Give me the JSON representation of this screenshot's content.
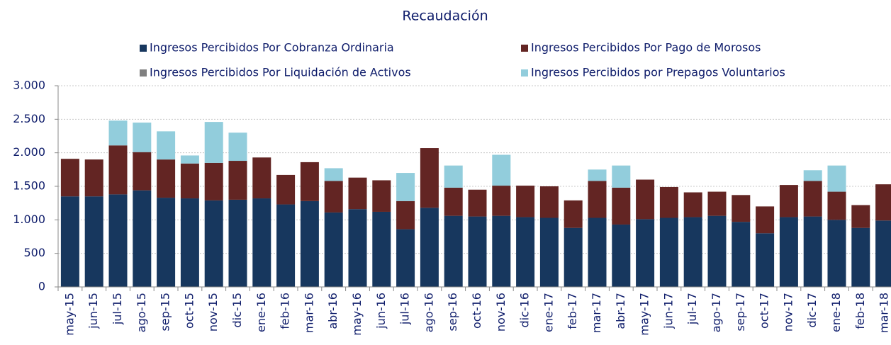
{
  "chart_data": {
    "type": "stacked_bar",
    "title": "Recaudación",
    "categories": [
      "may-15",
      "jun-15",
      "jul-15",
      "ago-15",
      "sep-15",
      "oct-15",
      "nov-15",
      "dic-15",
      "ene-16",
      "feb-16",
      "mar-16",
      "abr-16",
      "may-16",
      "jun-16",
      "jul-16",
      "ago-16",
      "sep-16",
      "oct-16",
      "nov-16",
      "dic-16",
      "ene-17",
      "feb-17",
      "mar-17",
      "abr-17",
      "may-17",
      "jun-17",
      "jul-17",
      "ago-17",
      "sep-17",
      "oct-17",
      "nov-17",
      "dic-17",
      "ene-18",
      "feb-18",
      "mar-18"
    ],
    "series": [
      {
        "name": "Ingresos Percibidos Por Cobranza Ordinaria",
        "color": "#17375e",
        "values": [
          1350,
          1350,
          1380,
          1440,
          1330,
          1320,
          1290,
          1300,
          1320,
          1230,
          1280,
          1110,
          1160,
          1120,
          860,
          1180,
          1060,
          1050,
          1060,
          1040,
          1030,
          880,
          1030,
          930,
          1010,
          1030,
          1040,
          1060,
          970,
          800,
          1040,
          1050,
          1000,
          880,
          990
        ]
      },
      {
        "name": "Ingresos Percibidos Por Pago de Morosos",
        "color": "#632523",
        "values": [
          560,
          550,
          730,
          570,
          570,
          520,
          560,
          580,
          610,
          440,
          580,
          470,
          470,
          470,
          420,
          890,
          420,
          400,
          450,
          470,
          470,
          410,
          550,
          550,
          590,
          460,
          370,
          360,
          400,
          400,
          480,
          530,
          420,
          340,
          540
        ]
      },
      {
        "name": "Ingresos Percibidos Por Liquidación de Activos",
        "color": "#808080",
        "values": [
          0,
          0,
          0,
          0,
          0,
          0,
          0,
          0,
          0,
          0,
          0,
          0,
          0,
          0,
          0,
          0,
          0,
          0,
          0,
          0,
          0,
          0,
          0,
          0,
          0,
          0,
          0,
          0,
          0,
          0,
          0,
          0,
          0,
          0,
          0
        ]
      },
      {
        "name": "Ingresos Percibidos por Prepagos Voluntarios",
        "color": "#92cddc",
        "values": [
          0,
          0,
          370,
          440,
          420,
          120,
          610,
          420,
          0,
          0,
          0,
          190,
          0,
          0,
          420,
          0,
          330,
          0,
          460,
          0,
          0,
          0,
          170,
          330,
          0,
          0,
          0,
          0,
          0,
          0,
          0,
          160,
          390,
          0,
          0
        ]
      }
    ],
    "ylim": [
      0,
      3000
    ],
    "yticks": [
      0,
      500,
      {
        "value": 1000,
        "label": "1.000"
      },
      {
        "value": 1500,
        "label": "1.500"
      },
      {
        "value": 2000,
        "label": "2.000"
      },
      {
        "value": 2500,
        "label": "2.500"
      },
      {
        "value": 3000,
        "label": "3.000"
      }
    ],
    "grid": true
  }
}
